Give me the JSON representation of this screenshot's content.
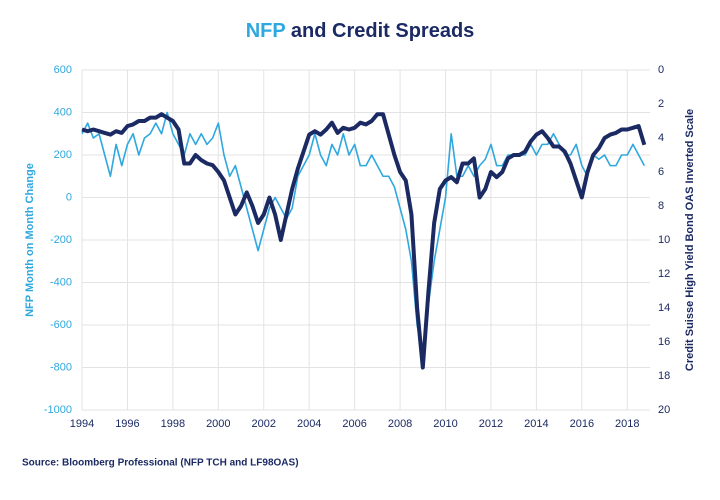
{
  "chart_data": {
    "type": "line",
    "title": "NFP and Credit Spreads",
    "y_label": "NFP Month on Month Change",
    "y2_label": "Credit Suisse High Yield Bond OAS Inverted Scale",
    "source": "Source: Bloomberg Professional (NFP TCH and LF98OAS)",
    "xlim": [
      1994,
      2019
    ],
    "xticks": [
      1994,
      1996,
      1998,
      2000,
      2002,
      2004,
      2006,
      2008,
      2010,
      2012,
      2014,
      2016,
      2018
    ],
    "ylim": [
      -1000,
      600
    ],
    "yticks": [
      -1000,
      -800,
      -600,
      -400,
      -200,
      0,
      200,
      400,
      600
    ],
    "y2lim": [
      20,
      0
    ],
    "y2ticks": [
      0,
      2,
      4,
      6,
      8,
      10,
      12,
      14,
      16,
      18,
      20
    ],
    "grid": true,
    "x": [
      1994,
      1994.25,
      1994.5,
      1994.75,
      1995,
      1995.25,
      1995.5,
      1995.75,
      1996,
      1996.25,
      1996.5,
      1996.75,
      1997,
      1997.25,
      1997.5,
      1997.75,
      1998,
      1998.25,
      1998.5,
      1998.75,
      1999,
      1999.25,
      1999.5,
      1999.75,
      2000,
      2000.25,
      2000.5,
      2000.75,
      2001,
      2001.25,
      2001.5,
      2001.75,
      2002,
      2002.25,
      2002.5,
      2002.75,
      2003,
      2003.25,
      2003.5,
      2003.75,
      2004,
      2004.25,
      2004.5,
      2004.75,
      2005,
      2005.25,
      2005.5,
      2005.75,
      2006,
      2006.25,
      2006.5,
      2006.75,
      2007,
      2007.25,
      2007.5,
      2007.75,
      2008,
      2008.25,
      2008.5,
      2008.75,
      2009,
      2009.25,
      2009.5,
      2009.75,
      2010,
      2010.25,
      2010.5,
      2010.75,
      2011,
      2011.25,
      2011.5,
      2011.75,
      2012,
      2012.25,
      2012.5,
      2012.75,
      2013,
      2013.25,
      2013.5,
      2013.75,
      2014,
      2014.25,
      2014.5,
      2014.75,
      2015,
      2015.25,
      2015.5,
      2015.75,
      2016,
      2016.25,
      2016.5,
      2016.75,
      2017,
      2017.25,
      2017.5,
      2017.75,
      2018,
      2018.25,
      2018.5,
      2018.75
    ],
    "series": [
      {
        "color": "#2ea8de",
        "axis": "y",
        "values": [
          300,
          350,
          280,
          300,
          200,
          100,
          250,
          150,
          250,
          300,
          200,
          280,
          300,
          350,
          300,
          400,
          300,
          250,
          200,
          300,
          250,
          300,
          250,
          280,
          350,
          200,
          100,
          150,
          50,
          -50,
          -150,
          -250,
          -150,
          -50,
          0,
          -50,
          -100,
          -50,
          100,
          150,
          200,
          300,
          200,
          150,
          250,
          200,
          300,
          200,
          250,
          150,
          150,
          200,
          150,
          100,
          100,
          50,
          -50,
          -150,
          -300,
          -600,
          -750,
          -500,
          -300,
          -150,
          0,
          300,
          100,
          100,
          150,
          100,
          150,
          180,
          250,
          150,
          150,
          200,
          200,
          200,
          200,
          250,
          200,
          250,
          250,
          300,
          250,
          200,
          200,
          250,
          150,
          100,
          200,
          180,
          200,
          150,
          150,
          200,
          200,
          250,
          200,
          150
        ]
      },
      {
        "color": "#1b2a63",
        "axis": "y2",
        "values": [
          3.5,
          3.6,
          3.5,
          3.6,
          3.7,
          3.8,
          3.6,
          3.7,
          3.3,
          3.2,
          3.0,
          3.0,
          2.8,
          2.8,
          2.6,
          2.8,
          3.0,
          3.5,
          5.5,
          5.5,
          5.0,
          5.3,
          5.5,
          5.6,
          6.0,
          6.5,
          7.5,
          8.5,
          8.0,
          7.2,
          8.0,
          9.0,
          8.5,
          7.5,
          8.5,
          10.0,
          8.5,
          7.0,
          5.8,
          4.8,
          3.8,
          3.6,
          3.8,
          3.5,
          3.1,
          3.7,
          3.4,
          3.5,
          3.4,
          3.1,
          3.2,
          3.0,
          2.6,
          2.6,
          3.8,
          5.0,
          6.0,
          6.5,
          8.5,
          14.0,
          17.5,
          13.0,
          9.0,
          7.0,
          6.5,
          6.3,
          6.6,
          5.5,
          5.5,
          5.2,
          7.5,
          7.0,
          6.0,
          6.3,
          6.0,
          5.2,
          5.0,
          5.0,
          4.8,
          4.2,
          3.8,
          3.6,
          4.0,
          4.5,
          4.5,
          4.8,
          5.5,
          6.5,
          7.5,
          6.0,
          5.0,
          4.6,
          4.0,
          3.8,
          3.7,
          3.5,
          3.5,
          3.4,
          3.3,
          4.4
        ]
      }
    ]
  }
}
